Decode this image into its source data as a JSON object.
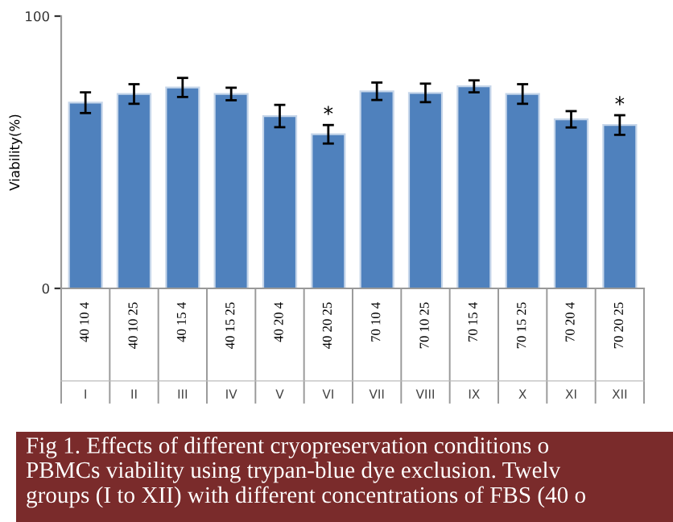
{
  "chart_data": {
    "type": "bar",
    "ylabel": "Viability(%)",
    "categories": [
      "40 10 4\nI",
      "40 10 25\nII",
      "40 15 4\nIII",
      "40 15 25\nIV",
      "40 20 4\nV",
      "40 20 25\nVI",
      "70 10 4\nVII",
      "70 10 25\nVIII",
      "70 15 4\nIX",
      "70 15 25\nX",
      "70 20 4\nXI",
      "70 20 25\nXII"
    ],
    "values": [
      68.2,
      71.4,
      73.8,
      71.4,
      63.3,
      56.6,
      72.4,
      71.8,
      74.2,
      71.4,
      62.1,
      60.0
    ],
    "errors": [
      3.8,
      3.6,
      3.5,
      2.3,
      4.1,
      3.4,
      3.2,
      3.4,
      2.2,
      3.6,
      3.0,
      3.6
    ],
    "color": "#4f81bd",
    "ylim": [
      0,
      100
    ],
    "yticks": [
      0,
      100
    ],
    "grid": false,
    "legend": false,
    "annotations": [
      {
        "text": "*",
        "x": "40 20 25\nVI",
        "y": 60.0
      },
      {
        "text": "*",
        "x": "70 20 25\nXII",
        "y": 63.6
      },
      "Fig 1. Effects of different cryopreservation conditions o\nPBMCs viability using trypan-blue dye exclusion. Twelv\ngroups (I to XII) with different concentrations of FBS (40 o"
    ]
  }
}
